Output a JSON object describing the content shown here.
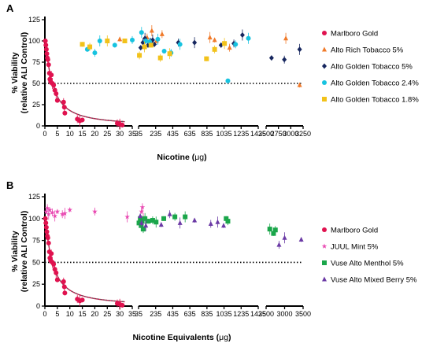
{
  "chart_data": [
    {
      "type": "scatter",
      "panel_label": "A",
      "ylabel": [
        "% Viability",
        "(relative ALI Control)"
      ],
      "xlabel": "Nicotine (μg)",
      "xlabel_prefix": "Nicotine (",
      "xlabel_unit": "μg",
      "xlabel_suffix": ")",
      "ylim": [
        0,
        125
      ],
      "yticks": [
        0,
        25,
        50,
        75,
        100,
        125
      ],
      "threshold": 50,
      "x_segments": [
        {
          "range": [
            0,
            35
          ],
          "ticks": [
            0,
            5,
            10,
            15,
            20,
            25,
            30,
            35
          ]
        },
        {
          "range": [
            35,
            1435
          ],
          "ticks": [
            35,
            235,
            435,
            635,
            835,
            1035,
            1235,
            1435
          ]
        },
        {
          "range": [
            2500,
            3250
          ],
          "ticks": [
            2500,
            2750,
            3000,
            3250
          ]
        }
      ],
      "legend": [
        {
          "label": "Marlboro Gold",
          "color": "#e0124f",
          "marker": "circle"
        },
        {
          "label": "Alto Rich Tobacco 5%",
          "color": "#f07a2a",
          "marker": "triangle"
        },
        {
          "label": "Alto Golden Tobacco 5%",
          "color": "#17275f",
          "marker": "diamond"
        },
        {
          "label": "Alto Golden Tobacco 2.4%",
          "color": "#17c3e0",
          "marker": "circle"
        },
        {
          "label": "Alto Golden Tobacco 1.8%",
          "color": "#f2c21a",
          "marker": "square"
        }
      ],
      "series": [
        {
          "name": "Marlboro Gold",
          "color": "#e0124f",
          "marker": "circle",
          "fit": true,
          "x": [
            0.2,
            0.4,
            0.6,
            0.8,
            1,
            1.2,
            1.5,
            1.8,
            2,
            2.3,
            2.6,
            3,
            3.5,
            4,
            4.5,
            5,
            7.5,
            7.8,
            8,
            13,
            14,
            15,
            29,
            30,
            31
          ],
          "y": [
            100,
            95,
            90,
            85,
            80,
            78,
            72,
            62,
            55,
            52,
            60,
            50,
            48,
            42,
            38,
            30,
            28,
            22,
            15,
            8,
            6,
            7,
            3,
            2,
            1
          ]
        },
        {
          "name": "Alto Rich Tobacco 5%",
          "color": "#f07a2a",
          "marker": "triangle",
          "x": [
            30,
            135,
            190,
            245,
            310,
            870,
            925,
            1100,
            2900,
            3180
          ],
          "y": [
            102,
            104,
            112,
            100,
            108,
            104,
            101,
            92,
            103,
            48
          ]
        },
        {
          "name": "Alto Golden Tobacco 5%",
          "color": "#17275f",
          "marker": "diamond",
          "x": [
            60,
            85,
            110,
            145,
            175,
            200,
            220,
            500,
            690,
            1000,
            1150,
            1250,
            2610,
            2870,
            3180
          ],
          "y": [
            92,
            98,
            103,
            95,
            99,
            101,
            96,
            98,
            98,
            95,
            97,
            107,
            80,
            78,
            90
          ]
        },
        {
          "name": "Alto Golden Tobacco 2.4%",
          "color": "#17c3e0",
          "marker": "circle",
          "x": [
            17,
            20,
            22,
            28,
            35,
            70,
            120,
            165,
            260,
            335,
            415,
            520,
            1080,
            1170,
            1320
          ],
          "y": [
            90,
            86,
            100,
            95,
            101,
            110,
            100,
            99,
            102,
            88,
            86,
            96,
            53,
            96,
            103
          ]
        },
        {
          "name": "Alto Golden Tobacco 1.8%",
          "color": "#f2c21a",
          "marker": "square",
          "x": [
            15,
            18,
            25,
            32,
            45,
            105,
            180,
            290,
            400,
            830,
            925,
            1040
          ],
          "y": [
            96,
            93,
            100,
            100,
            83,
            93,
            95,
            80,
            85,
            79,
            90,
            97
          ]
        }
      ]
    },
    {
      "type": "scatter",
      "panel_label": "B",
      "ylabel": [
        "% Viability",
        "(relative ALI Control)"
      ],
      "xlabel": "Nicotine Equivalents (μg)",
      "xlabel_prefix": "Nicotine Equivalents (",
      "xlabel_unit": "μg",
      "xlabel_suffix": ")",
      "ylim": [
        0,
        125
      ],
      "yticks": [
        0,
        25,
        50,
        75,
        100,
        125
      ],
      "threshold": 50,
      "x_segments": [
        {
          "range": [
            0,
            35
          ],
          "ticks": [
            0,
            5,
            10,
            15,
            20,
            25,
            30,
            35
          ]
        },
        {
          "range": [
            35,
            1435
          ],
          "ticks": [
            35,
            235,
            435,
            635,
            835,
            1035,
            1235,
            1435
          ]
        },
        {
          "range": [
            2500,
            3500
          ],
          "ticks": [
            2500,
            3000,
            3500
          ]
        }
      ],
      "legend": [
        {
          "label": "Marlboro Gold",
          "color": "#e0124f",
          "marker": "circle"
        },
        {
          "label": "JUUL Mint 5%",
          "color": "#e94ab2",
          "marker": "star"
        },
        {
          "label": "Vuse Alto Menthol 5%",
          "color": "#1aa64a",
          "marker": "square"
        },
        {
          "label": "Vuse Alto Mixed Berry 5%",
          "color": "#6b3aa5",
          "marker": "triangle"
        }
      ],
      "series": [
        {
          "name": "Marlboro Gold",
          "color": "#e0124f",
          "marker": "circle",
          "fit": true,
          "x": [
            0.2,
            0.4,
            0.6,
            0.8,
            1,
            1.2,
            1.5,
            1.8,
            2,
            2.3,
            2.6,
            3,
            3.5,
            4,
            4.5,
            5,
            7.5,
            7.8,
            8,
            13,
            14,
            15,
            29,
            30,
            31
          ],
          "y": [
            100,
            95,
            90,
            85,
            80,
            78,
            72,
            62,
            55,
            52,
            60,
            50,
            48,
            42,
            38,
            30,
            28,
            22,
            15,
            8,
            6,
            7,
            3,
            2,
            1
          ]
        },
        {
          "name": "JUUL Mint 5%",
          "color": "#e94ab2",
          "marker": "star",
          "x": [
            0.5,
            1,
            1.5,
            2,
            3,
            4,
            5,
            7,
            8,
            10,
            20,
            33,
            70,
            80,
            90
          ],
          "y": [
            108,
            112,
            105,
            110,
            107,
            103,
            108,
            105,
            106,
            110,
            108,
            102,
            108,
            113,
            100
          ]
        },
        {
          "name": "Vuse Alto Menthol 5%",
          "color": "#1aa64a",
          "marker": "square",
          "x": [
            40,
            55,
            65,
            75,
            90,
            110,
            150,
            200,
            240,
            330,
            460,
            580,
            1060,
            1080,
            2600,
            2700,
            2750
          ],
          "y": [
            95,
            100,
            92,
            97,
            88,
            100,
            97,
            98,
            96,
            100,
            102,
            102,
            100,
            97,
            88,
            83,
            87
          ]
        },
        {
          "name": "Vuse Alto Mixed Berry 5%",
          "color": "#6b3aa5",
          "marker": "triangle",
          "x": [
            55,
            70,
            120,
            300,
            400,
            520,
            690,
            880,
            960,
            1030,
            2850,
            3000,
            3450
          ],
          "y": [
            103,
            95,
            92,
            93,
            105,
            95,
            98,
            94,
            96,
            92,
            70,
            78,
            76
          ]
        }
      ]
    }
  ]
}
